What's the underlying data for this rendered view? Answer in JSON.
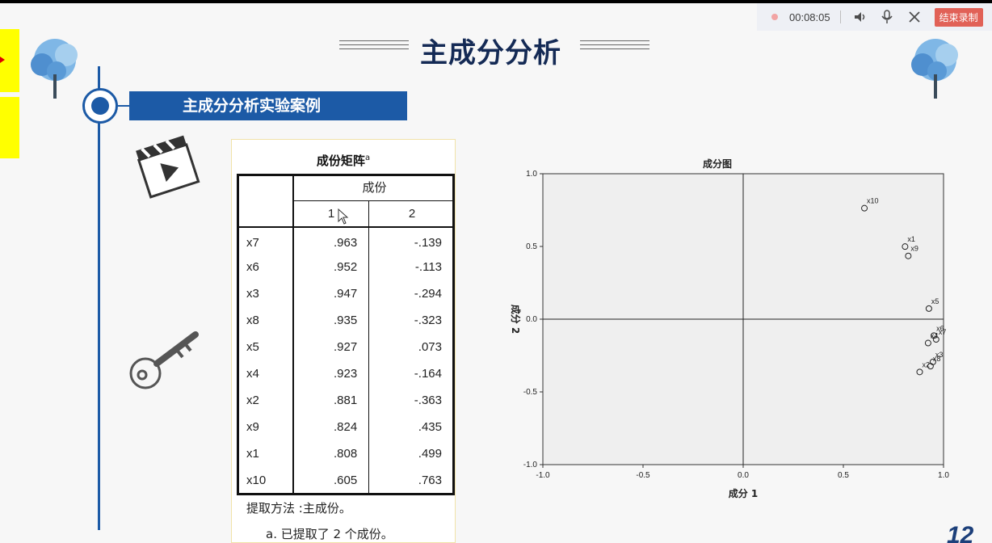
{
  "recorder": {
    "time": "00:08:05",
    "stop_label": "结束录制"
  },
  "slide": {
    "title": "主成分分析",
    "section_label": "主成分分析实验案例",
    "page_number": "12"
  },
  "matrix": {
    "title": "成份矩阵",
    "title_note": "a",
    "group_header": "成份",
    "columns": [
      "1",
      "2"
    ],
    "rows": [
      {
        "name": "x7",
        "c1": ".963",
        "c2": "-.139"
      },
      {
        "name": "x6",
        "c1": ".952",
        "c2": "-.113"
      },
      {
        "name": "x3",
        "c1": ".947",
        "c2": "-.294"
      },
      {
        "name": "x8",
        "c1": ".935",
        "c2": "-.323"
      },
      {
        "name": "x5",
        "c1": ".927",
        "c2": ".073"
      },
      {
        "name": "x4",
        "c1": ".923",
        "c2": "-.164"
      },
      {
        "name": "x2",
        "c1": ".881",
        "c2": "-.363"
      },
      {
        "name": "x9",
        "c1": ".824",
        "c2": ".435"
      },
      {
        "name": "x1",
        "c1": ".808",
        "c2": ".499"
      },
      {
        "name": "x10",
        "c1": ".605",
        "c2": ".763"
      }
    ],
    "footnote_method": "提取方法 :主成份。",
    "footnote_a": "a. 已提取了 2 个成份。"
  },
  "chart_data": {
    "type": "scatter",
    "title": "成分图",
    "xlabel": "成分 1",
    "ylabel": "成分 2",
    "xlim": [
      -1.0,
      1.0
    ],
    "ylim": [
      -1.0,
      1.0
    ],
    "xticks": [
      "-1.0",
      "-0.5",
      "0.0",
      "0.5",
      "1.0"
    ],
    "yticks": [
      "1.0",
      "0.5",
      "0.0",
      "-0.5",
      "-1.0"
    ],
    "points": [
      {
        "label": "x10",
        "x": 0.605,
        "y": 0.763
      },
      {
        "label": "x1",
        "x": 0.808,
        "y": 0.499
      },
      {
        "label": "x9",
        "x": 0.824,
        "y": 0.435
      },
      {
        "label": "x5",
        "x": 0.927,
        "y": 0.073
      },
      {
        "label": "x6",
        "x": 0.952,
        "y": -0.113
      },
      {
        "label": "x4",
        "x": 0.923,
        "y": -0.164
      },
      {
        "label": "x7",
        "x": 0.963,
        "y": -0.139
      },
      {
        "label": "x3",
        "x": 0.947,
        "y": -0.294
      },
      {
        "label": "x8",
        "x": 0.935,
        "y": -0.323
      },
      {
        "label": "x2",
        "x": 0.881,
        "y": -0.363
      }
    ],
    "plot_background": "#efefef"
  },
  "colors": {
    "accent": "#1c5aa6",
    "title": "#142a55",
    "highlight": "#ffff00"
  }
}
